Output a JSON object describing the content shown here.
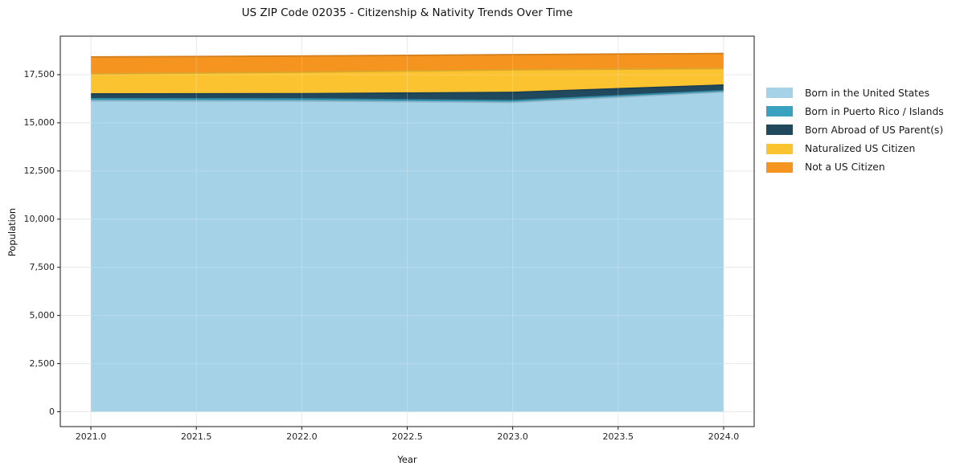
{
  "chart_data": {
    "type": "area",
    "stacked": true,
    "title": "US ZIP Code 02035 - Citizenship & Nativity Trends Over Time",
    "xlabel": "Year",
    "ylabel": "Population",
    "x": [
      2021,
      2022,
      2023,
      2024
    ],
    "series": [
      {
        "name": "Born in the United States",
        "color": "#a6d2e8",
        "values": [
          16140,
          16130,
          16060,
          16600
        ]
      },
      {
        "name": "Born in Puerto Rico / Islands",
        "color": "#3aa2c0",
        "values": [
          110,
          110,
          90,
          70
        ]
      },
      {
        "name": "Born Abroad of US Parent(s)",
        "color": "#21495e",
        "values": [
          250,
          270,
          430,
          290
        ]
      },
      {
        "name": "Naturalized US Citizen",
        "color": "#fcc331",
        "values": [
          1040,
          1120,
          1170,
          860
        ]
      },
      {
        "name": "Not a US Citizen",
        "color": "#f5941f",
        "values": [
          880,
          840,
          790,
          780
        ]
      }
    ],
    "x_ticks": [
      "2021.0",
      "2021.5",
      "2022.0",
      "2022.5",
      "2023.0",
      "2023.5",
      "2024.0"
    ],
    "x_tick_values": [
      2021,
      2021.5,
      2022,
      2022.5,
      2023,
      2023.5,
      2024
    ],
    "y_ticks": [
      "0",
      "2,500",
      "5,000",
      "7,500",
      "10,000",
      "12,500",
      "15,000",
      "17,500"
    ],
    "y_tick_values": [
      0,
      2500,
      5000,
      7500,
      10000,
      12500,
      15000,
      17500
    ],
    "xlim": [
      2020.855,
      2024.145
    ],
    "ylim": [
      -770,
      19500
    ],
    "grid": true,
    "legend_position": "right-outside",
    "colors": {
      "grid": "#e4e4e4",
      "spine": "#1a1a1a",
      "background": "#ffffff"
    }
  }
}
